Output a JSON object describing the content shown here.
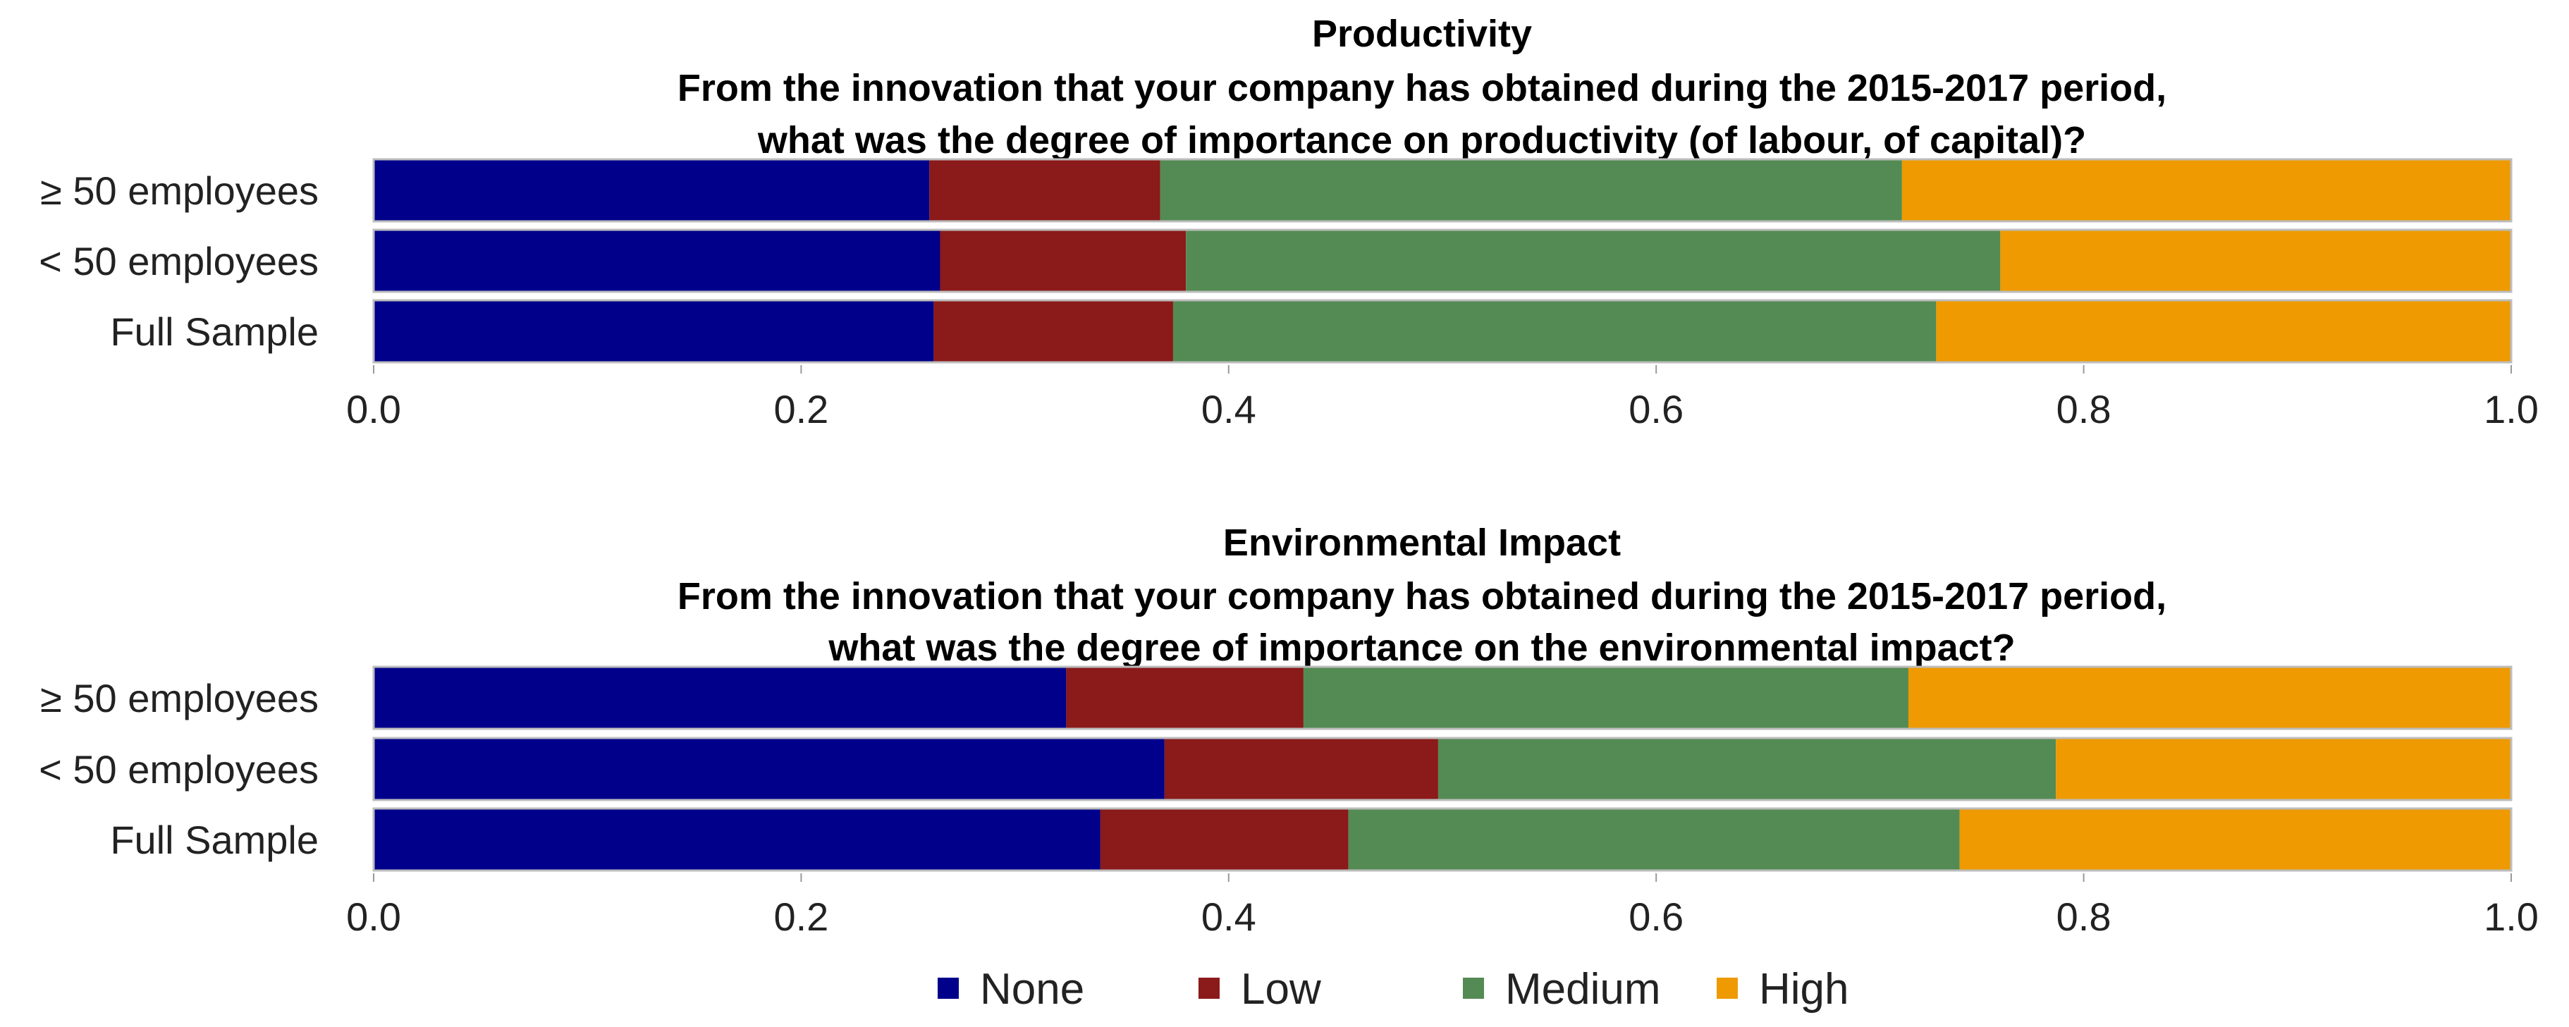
{
  "chart_data": [
    {
      "type": "bar",
      "orientation": "horizontal",
      "stacked": true,
      "title": "Productivity",
      "subtitle_lines": [
        "From the innovation that your company has obtained during the 2015-2017 period,",
        "what was the degree of importance on productivity (of labour, of capital)?"
      ],
      "categories": [
        "≥ 50 employees",
        "< 50 employees",
        "Full Sample"
      ],
      "series": [
        {
          "name": "None",
          "values": [
            0.26,
            0.265,
            0.262
          ]
        },
        {
          "name": "Low",
          "values": [
            0.108,
            0.115,
            0.112
          ]
        },
        {
          "name": "Medium",
          "values": [
            0.347,
            0.381,
            0.357
          ]
        },
        {
          "name": "High",
          "values": [
            0.285,
            0.239,
            0.269
          ]
        }
      ],
      "xlim": [
        0,
        1.0
      ],
      "xticks": [
        "0.0",
        "0.2",
        "0.4",
        "0.6",
        "0.8",
        "1.0"
      ],
      "xlabel": "",
      "ylabel": ""
    },
    {
      "type": "bar",
      "orientation": "horizontal",
      "stacked": true,
      "title": "Environmental Impact",
      "subtitle_lines": [
        "From the innovation that your company has obtained during the 2015-2017 period,",
        "what was the degree of importance on the environmental impact?"
      ],
      "categories": [
        "≥ 50 employees",
        "< 50 employees",
        "Full Sample"
      ],
      "series": [
        {
          "name": "None",
          "values": [
            0.324,
            0.37,
            0.34
          ]
        },
        {
          "name": "Low",
          "values": [
            0.111,
            0.128,
            0.116
          ]
        },
        {
          "name": "Medium",
          "values": [
            0.283,
            0.289,
            0.286
          ]
        },
        {
          "name": "High",
          "values": [
            0.282,
            0.213,
            0.258
          ]
        }
      ],
      "xlim": [
        0,
        1.0
      ],
      "xticks": [
        "0.0",
        "0.2",
        "0.4",
        "0.6",
        "0.8",
        "1.0"
      ],
      "xlabel": "",
      "ylabel": ""
    }
  ],
  "legend": {
    "position": "bottom",
    "items": [
      {
        "label": "None",
        "color": "#00008B"
      },
      {
        "label": "Low",
        "color": "#8B1A1A"
      },
      {
        "label": "Medium",
        "color": "#548B54"
      },
      {
        "label": "High",
        "color": "#EE9A00"
      }
    ]
  },
  "colors": {
    "None": "#00008B",
    "Low": "#8B1A1A",
    "Medium": "#548B54",
    "High": "#EE9A00",
    "bar_outline": "#bdbdbd"
  }
}
